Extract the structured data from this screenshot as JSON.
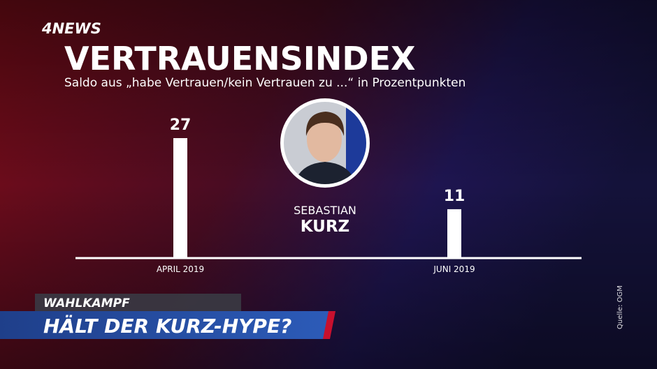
{
  "logo": "4NEWS",
  "chart_data": {
    "type": "bar",
    "title": "VERTRAUENSINDEX",
    "subtitle": "Saldo aus „habe Vertrauen/kein Vertrauen zu ...“ in Prozentpunkten",
    "categories": [
      "APRIL 2019",
      "JUNI 2019"
    ],
    "values": [
      27,
      11
    ],
    "color": "#ffffff"
  },
  "person": {
    "first_name": "SEBASTIAN",
    "last_name": "KURZ"
  },
  "lower_third": {
    "kicker": "WAHLKAMPF",
    "headline": "HÄLT DER KURZ-HYPE?"
  },
  "source": "Quelle: OGM"
}
